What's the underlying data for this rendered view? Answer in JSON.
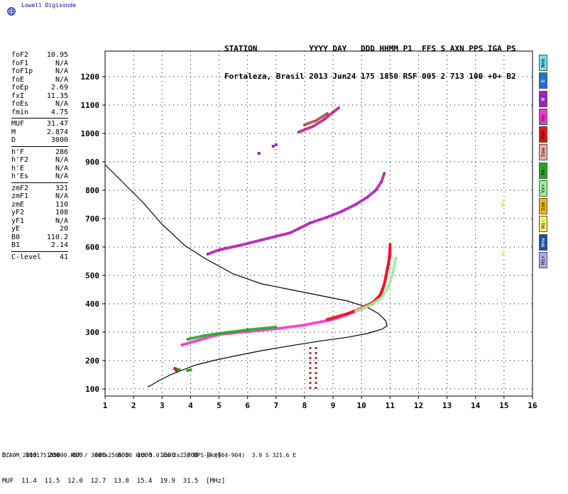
{
  "brand": {
    "name": "Lowell Digisonde"
  },
  "header": {
    "line1": "STATION           YYYY DAY   DDD HHMM P1  FFS S AXN PPS IGA PS",
    "line2": "Fortaleza, Brasil 2013 Jun24 175 1850 RSF 005 2 713 100 +0+ B2"
  },
  "params": [
    {
      "key": "foF2",
      "value": "10.95"
    },
    {
      "key": "foF1",
      "value": "N/A"
    },
    {
      "key": "foF1p",
      "value": "N/A"
    },
    {
      "key": "foE",
      "value": "N/A"
    },
    {
      "key": "foEp",
      "value": "2.69"
    },
    {
      "key": "fxI",
      "value": "11.35"
    },
    {
      "key": "foEs",
      "value": "N/A"
    },
    {
      "key": "fmin",
      "value": "4.75"
    },
    {
      "sep": true
    },
    {
      "key": "MUF",
      "value": "31.47"
    },
    {
      "key": "M",
      "value": "2.874"
    },
    {
      "key": "D",
      "value": "3000"
    },
    {
      "sep": true
    },
    {
      "key": "h'F",
      "value": "286"
    },
    {
      "key": "h'F2",
      "value": "N/A"
    },
    {
      "key": "h'E",
      "value": "N/A"
    },
    {
      "key": "h'Es",
      "value": "N/A"
    },
    {
      "sep": true
    },
    {
      "key": "zmF2",
      "value": "321"
    },
    {
      "key": "zmF1",
      "value": "N/A"
    },
    {
      "key": "zmE",
      "value": "110"
    },
    {
      "key": "yF2",
      "value": "108"
    },
    {
      "key": "yF1",
      "value": "N/A"
    },
    {
      "key": "yE",
      "value": "20"
    },
    {
      "key": "B0",
      "value": "110.2"
    },
    {
      "key": "B1",
      "value": "2.14"
    },
    {
      "sep": true
    },
    {
      "key": "C-level",
      "value": "41"
    }
  ],
  "legend": [
    {
      "label": "Nne",
      "color": "#66e6e6"
    },
    {
      "label": "E",
      "color": "#1a73d9"
    },
    {
      "label": "W",
      "color": "#a020c0"
    },
    {
      "label": "Vo-",
      "color": "#ff33cc"
    },
    {
      "label": "Vo+",
      "color": "#ee1111"
    },
    {
      "label": "Ssw",
      "color": "#f4a8a8"
    },
    {
      "label": "Vx-",
      "color": "#22aa22"
    },
    {
      "label": "Vx+",
      "color": "#99f099"
    },
    {
      "label": "Sse",
      "color": "#f5b800"
    },
    {
      "label": "Hi-",
      "color": "#f5f066"
    },
    {
      "label": "Nnw",
      "color": "#1a4fa0"
    },
    {
      "label": "Hi+",
      "color": "#b0a8ee"
    }
  ],
  "muf_table": {
    "row1": "D     100   200   400   600   800  1000  1500  3000  [km]",
    "row2": "MUF  11.4  11.5  12.0  12.7  13.8  15.4  19.9  31.5  [MHz]"
  },
  "footer": {
    "text": "FZA0M_2013175185000.RSF / 300fx256h 50 kHz 5.0 km 2x2 / DPS-4 (904-904)  3.9 S 321.6 E"
  },
  "chart_data": {
    "type": "scatter",
    "x_ticks": [
      "1",
      "2",
      "3",
      "4",
      "5",
      "6",
      "7",
      "8",
      "9",
      "10",
      "11",
      "12",
      "13",
      "14",
      "15",
      "16"
    ],
    "y_ticks": [
      "100",
      "200",
      "300",
      "400",
      "500",
      "600",
      "700",
      "800",
      "900",
      "1000",
      "1100",
      "1200"
    ],
    "xlim": [
      1,
      16
    ],
    "ylim": [
      75,
      1290
    ],
    "grid": true,
    "series": [
      {
        "color": "#000000",
        "style": "line",
        "points": [
          [
            2.5,
            107
          ],
          [
            2.65,
            115
          ],
          [
            2.9,
            130
          ],
          [
            3.3,
            150
          ],
          [
            3.8,
            170
          ],
          [
            4.2,
            185
          ],
          [
            4.8,
            200
          ],
          [
            5.5,
            215
          ],
          [
            6.5,
            235
          ],
          [
            7.5,
            252
          ],
          [
            8.5,
            268
          ],
          [
            9.5,
            282
          ],
          [
            10.2,
            295
          ],
          [
            10.7,
            310
          ],
          [
            10.9,
            322
          ],
          [
            10.85,
            340
          ],
          [
            10.6,
            365
          ],
          [
            10.2,
            388
          ],
          [
            9.5,
            410
          ],
          [
            8.5,
            430
          ],
          [
            7.5,
            450
          ],
          [
            6.5,
            470
          ],
          [
            5.5,
            505
          ],
          [
            4.5,
            560
          ],
          [
            3.8,
            605
          ],
          [
            3.0,
            680
          ],
          [
            2.3,
            760
          ],
          [
            1.6,
            830
          ],
          [
            1.0,
            890
          ]
        ]
      },
      {
        "color": "#ff33cc",
        "style": "band",
        "points": [
          [
            3.7,
            255
          ],
          [
            4.5,
            278
          ],
          [
            5.0,
            292
          ],
          [
            6.0,
            302
          ],
          [
            7.0,
            312
          ],
          [
            8.0,
            325
          ],
          [
            9.0,
            345
          ],
          [
            9.5,
            362
          ],
          [
            10.0,
            382
          ],
          [
            10.4,
            400
          ],
          [
            10.6,
            420
          ],
          [
            10.75,
            450
          ],
          [
            10.85,
            490
          ],
          [
            10.95,
            540
          ],
          [
            11.0,
            600
          ]
        ]
      },
      {
        "color": "#ee1111",
        "style": "band",
        "points": [
          [
            8.8,
            345
          ],
          [
            9.5,
            365
          ],
          [
            10.0,
            385
          ],
          [
            10.4,
            405
          ],
          [
            10.65,
            430
          ],
          [
            10.8,
            470
          ],
          [
            10.9,
            520
          ],
          [
            11.0,
            570
          ],
          [
            11.0,
            610
          ]
        ]
      },
      {
        "color": "#22aa22",
        "style": "band",
        "points": [
          [
            3.9,
            275
          ],
          [
            4.5,
            288
          ],
          [
            5.2,
            298
          ],
          [
            6.0,
            308
          ],
          [
            7.0,
            318
          ]
        ]
      },
      {
        "color": "#99f099",
        "style": "band",
        "points": [
          [
            9.8,
            375
          ],
          [
            10.3,
            395
          ],
          [
            10.7,
            420
          ],
          [
            10.95,
            460
          ],
          [
            11.1,
            510
          ],
          [
            11.2,
            560
          ]
        ]
      },
      {
        "color": "#b01fb0",
        "style": "band",
        "points": [
          [
            4.6,
            575
          ],
          [
            5.0,
            590
          ],
          [
            5.7,
            605
          ],
          [
            6.5,
            625
          ],
          [
            7.5,
            650
          ],
          [
            7.8,
            665
          ],
          [
            8.2,
            685
          ],
          [
            8.8,
            705
          ],
          [
            9.3,
            725
          ],
          [
            9.8,
            750
          ],
          [
            10.2,
            775
          ],
          [
            10.5,
            800
          ],
          [
            10.7,
            830
          ],
          [
            10.8,
            860
          ]
        ]
      },
      {
        "color": "#c0208a",
        "style": "band",
        "points": [
          [
            7.8,
            1005
          ],
          [
            8.3,
            1025
          ],
          [
            8.7,
            1050
          ],
          [
            9.0,
            1075
          ],
          [
            9.2,
            1090
          ]
        ]
      },
      {
        "color": "#a05050",
        "style": "band",
        "points": [
          [
            8.0,
            1030
          ],
          [
            8.4,
            1045
          ],
          [
            8.8,
            1070
          ]
        ]
      },
      {
        "color": "#a03030",
        "style": "vertical",
        "points": [
          [
            8.2,
            100
          ],
          [
            8.2,
            250
          ],
          [
            8.4,
            100
          ],
          [
            8.4,
            250
          ]
        ]
      },
      {
        "color": "#22aa22",
        "style": "dots",
        "points": [
          [
            3.5,
            170
          ],
          [
            3.6,
            168
          ],
          [
            3.9,
            165
          ],
          [
            4.0,
            167
          ]
        ]
      },
      {
        "color": "#ee1111",
        "style": "dots",
        "points": [
          [
            3.45,
            172
          ],
          [
            3.5,
            165
          ]
        ]
      },
      {
        "color": "#f5f066",
        "style": "dots",
        "points": [
          [
            14.95,
            755
          ],
          [
            14.95,
            745
          ],
          [
            14.95,
            575
          ]
        ]
      },
      {
        "color": "#a020c0",
        "style": "dots",
        "points": [
          [
            6.4,
            930
          ],
          [
            6.9,
            955
          ],
          [
            7.0,
            960
          ]
        ]
      }
    ]
  }
}
